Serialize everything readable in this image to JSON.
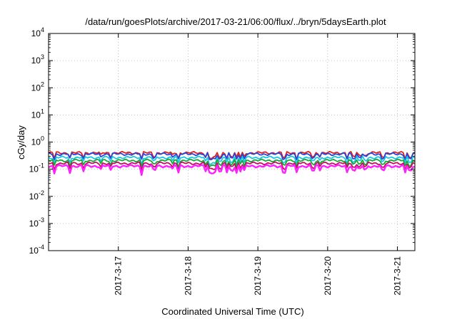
{
  "chart_data": {
    "type": "line",
    "title": "/data/run/goesPlots/archive/2017-03-21/06:00/flux/../bryn/5daysEarth.plot",
    "xlabel": "Coordinated Universal Time (UTC)",
    "ylabel": "cGy/day",
    "y_scale": "log",
    "ylim": [
      0.0001,
      10000
    ],
    "y_ticks": [
      {
        "base": "10",
        "exp": "-4",
        "value": 0.0001
      },
      {
        "base": "10",
        "exp": "-3",
        "value": 0.001
      },
      {
        "base": "10",
        "exp": "-2",
        "value": 0.01
      },
      {
        "base": "10",
        "exp": "-1",
        "value": 0.1
      },
      {
        "base": "10",
        "exp": "0",
        "value": 1
      },
      {
        "base": "10",
        "exp": "1",
        "value": 10
      },
      {
        "base": "10",
        "exp": "2",
        "value": 100
      },
      {
        "base": "10",
        "exp": "3",
        "value": 1000
      },
      {
        "base": "10",
        "exp": "4",
        "value": 10000
      }
    ],
    "xlim": [
      "2017-03-16T00:00",
      "2017-03-21T06:00"
    ],
    "x_ticks": [
      {
        "label": "2017-3-17",
        "value": "2017-03-17T00:00"
      },
      {
        "label": "2017-3-18",
        "value": "2017-03-18T00:00"
      },
      {
        "label": "2017-3-19",
        "value": "2017-03-19T00:00"
      },
      {
        "label": "2017-3-20",
        "value": "2017-03-20T00:00"
      },
      {
        "label": "2017-3-21",
        "value": "2017-03-21T00:00"
      }
    ],
    "grid": true,
    "series": [
      {
        "color": "#e02020",
        "base": 0.4,
        "dip_depth": 0.55
      },
      {
        "color": "#2a44d8",
        "base": 0.36,
        "dip_depth": 0.55
      },
      {
        "color": "#18c8e0",
        "base": 0.27,
        "dip_depth": 0.6
      },
      {
        "color": "#18a838",
        "base": 0.21,
        "dip_depth": 0.6
      },
      {
        "color": "#c01060",
        "base": 0.165,
        "dip_depth": 0.6
      },
      {
        "color": "#ff20ff",
        "base": 0.13,
        "dip_depth": 0.65
      }
    ],
    "dips": [
      {
        "t": "2017-03-16T01:50",
        "d": 0.55
      },
      {
        "t": "2017-03-16T07:30",
        "d": 0.5
      },
      {
        "t": "2017-03-16T12:10",
        "d": 0.45
      },
      {
        "t": "2017-03-16T18:00",
        "d": 0.3
      },
      {
        "t": "2017-03-16T21:20",
        "d": 0.4
      },
      {
        "t": "2017-03-17T08:10",
        "d": 0.6
      },
      {
        "t": "2017-03-17T12:20",
        "d": 0.35
      },
      {
        "t": "2017-03-17T18:50",
        "d": 0.3
      },
      {
        "t": "2017-03-17T20:30",
        "d": 0.55
      },
      {
        "t": "2017-03-18T06:00",
        "d": 0.4
      },
      {
        "t": "2017-03-18T07:40",
        "d": 0.55
      },
      {
        "t": "2017-03-18T09:00",
        "d": 0.5
      },
      {
        "t": "2017-03-18T11:00",
        "d": 0.45
      },
      {
        "t": "2017-03-18T13:30",
        "d": 0.5
      },
      {
        "t": "2017-03-18T15:00",
        "d": 0.4
      },
      {
        "t": "2017-03-18T16:30",
        "d": 0.55
      },
      {
        "t": "2017-03-18T18:00",
        "d": 0.45
      },
      {
        "t": "2017-03-18T19:30",
        "d": 0.45
      },
      {
        "t": "2017-03-19T09:00",
        "d": 0.5
      },
      {
        "t": "2017-03-19T13:10",
        "d": 0.55
      },
      {
        "t": "2017-03-19T19:00",
        "d": 0.4
      },
      {
        "t": "2017-03-19T21:30",
        "d": 0.35
      },
      {
        "t": "2017-03-20T06:40",
        "d": 0.5
      },
      {
        "t": "2017-03-20T09:00",
        "d": 0.4
      },
      {
        "t": "2017-03-20T11:00",
        "d": 0.3
      },
      {
        "t": "2017-03-20T13:00",
        "d": 0.3
      },
      {
        "t": "2017-03-20T19:00",
        "d": 0.4
      },
      {
        "t": "2017-03-21T02:50",
        "d": 0.55
      },
      {
        "t": "2017-03-21T04:20",
        "d": 0.45
      }
    ]
  }
}
